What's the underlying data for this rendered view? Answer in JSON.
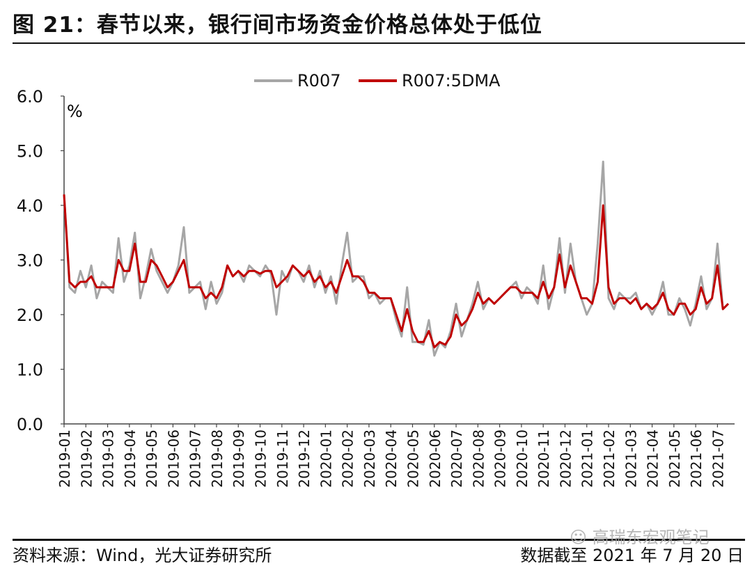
{
  "title": "图 21：春节以来，银行间市场资金价格总体处于低位",
  "footer": {
    "source": "资料来源：Wind，光大证券研究所",
    "cutoff": "数据截至 2021 年 7 月 20 日",
    "watermark": "高瑞东宏观笔记"
  },
  "chart_data": {
    "type": "line",
    "title": "",
    "ylabel": "%",
    "xlabel": "",
    "ylim": [
      0,
      6
    ],
    "yticks": [
      "0.0",
      "1.0",
      "2.0",
      "3.0",
      "4.0",
      "5.0",
      "6.0"
    ],
    "xticks": [
      "2019-01",
      "2019-02",
      "2019-03",
      "2019-04",
      "2019-05",
      "2019-06",
      "2019-07",
      "2019-08",
      "2019-09",
      "2019-10",
      "2019-11",
      "2019-12",
      "2020-01",
      "2020-02",
      "2020-03",
      "2020-04",
      "2020-05",
      "2020-06",
      "2020-07",
      "2020-08",
      "2020-09",
      "2020-10",
      "2020-11",
      "2020-12",
      "2021-01",
      "2021-02",
      "2021-03",
      "2021-04",
      "2021-05",
      "2021-06",
      "2021-07"
    ],
    "x_start": "2019-01",
    "x_step_months": 0.25,
    "legend_position": "top-center",
    "series": [
      {
        "name": "R007",
        "color": "#a6a6a6",
        "values": [
          4.2,
          2.5,
          2.4,
          2.8,
          2.5,
          2.9,
          2.3,
          2.6,
          2.5,
          2.4,
          3.4,
          2.6,
          2.9,
          3.5,
          2.3,
          2.7,
          3.2,
          2.8,
          2.6,
          2.4,
          2.6,
          2.9,
          3.6,
          2.4,
          2.5,
          2.6,
          2.1,
          2.6,
          2.2,
          2.4,
          2.9,
          2.7,
          2.8,
          2.6,
          2.9,
          2.8,
          2.7,
          2.9,
          2.75,
          2.0,
          2.8,
          2.6,
          2.9,
          2.8,
          2.6,
          2.9,
          2.5,
          2.8,
          2.4,
          2.7,
          2.2,
          2.9,
          3.5,
          2.6,
          2.7,
          2.7,
          2.3,
          2.4,
          2.2,
          2.3,
          2.3,
          1.9,
          1.6,
          2.5,
          1.5,
          1.5,
          1.45,
          1.9,
          1.25,
          1.5,
          1.4,
          1.7,
          2.2,
          1.6,
          1.9,
          2.2,
          2.6,
          2.1,
          2.3,
          2.2,
          2.3,
          2.4,
          2.5,
          2.6,
          2.3,
          2.5,
          2.4,
          2.2,
          2.9,
          2.1,
          2.5,
          3.4,
          2.4,
          3.3,
          2.6,
          2.3,
          2.0,
          2.2,
          3.3,
          4.8,
          2.3,
          2.1,
          2.4,
          2.3,
          2.3,
          2.4,
          2.1,
          2.2,
          2.0,
          2.2,
          2.6,
          2.0,
          2.0,
          2.3,
          2.1,
          1.8,
          2.2,
          2.7,
          2.1,
          2.3,
          3.3,
          2.1,
          2.2
        ]
      },
      {
        "name": "R007:5DMA",
        "color": "#c00000",
        "values": [
          4.2,
          2.6,
          2.5,
          2.6,
          2.6,
          2.7,
          2.5,
          2.5,
          2.5,
          2.5,
          3.0,
          2.8,
          2.8,
          3.3,
          2.6,
          2.6,
          3.0,
          2.9,
          2.7,
          2.5,
          2.6,
          2.8,
          3.0,
          2.5,
          2.5,
          2.5,
          2.3,
          2.4,
          2.3,
          2.5,
          2.9,
          2.7,
          2.8,
          2.7,
          2.8,
          2.8,
          2.75,
          2.8,
          2.8,
          2.5,
          2.6,
          2.7,
          2.9,
          2.8,
          2.7,
          2.8,
          2.6,
          2.7,
          2.5,
          2.6,
          2.4,
          2.7,
          3.0,
          2.7,
          2.7,
          2.6,
          2.4,
          2.4,
          2.3,
          2.3,
          2.3,
          2.0,
          1.7,
          2.1,
          1.7,
          1.5,
          1.5,
          1.7,
          1.4,
          1.5,
          1.45,
          1.6,
          2.0,
          1.8,
          1.9,
          2.1,
          2.4,
          2.2,
          2.3,
          2.2,
          2.3,
          2.4,
          2.5,
          2.5,
          2.4,
          2.4,
          2.4,
          2.3,
          2.6,
          2.3,
          2.5,
          3.1,
          2.5,
          2.9,
          2.6,
          2.3,
          2.3,
          2.2,
          2.6,
          4.0,
          2.5,
          2.2,
          2.3,
          2.3,
          2.2,
          2.3,
          2.1,
          2.2,
          2.1,
          2.2,
          2.4,
          2.1,
          2.0,
          2.2,
          2.2,
          2.0,
          2.1,
          2.5,
          2.2,
          2.3,
          2.9,
          2.1,
          2.2
        ]
      }
    ]
  }
}
